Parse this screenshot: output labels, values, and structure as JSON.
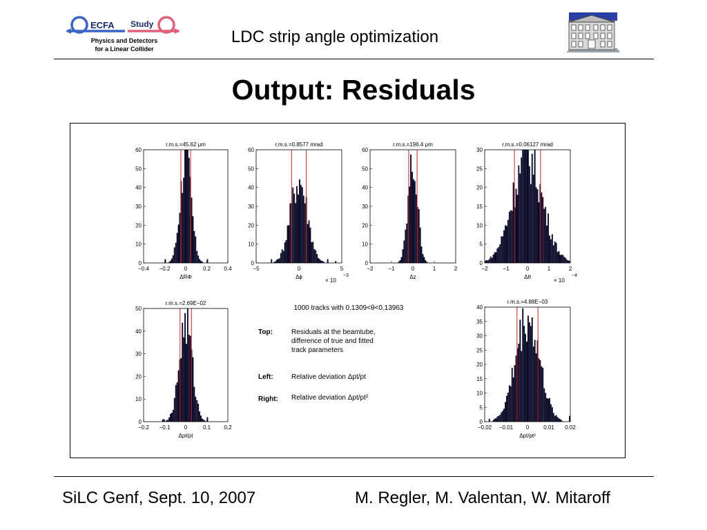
{
  "header": {
    "logo_main": "ECFA",
    "logo_study": "Study",
    "logo_line1": "Physics and Detectors",
    "logo_line2": "for a Linear Collider",
    "title": "LDC strip angle optimization"
  },
  "slide_title": "Output: Residuals",
  "footer": {
    "left": "SiLC Genf, Sept. 10, 2007",
    "right": "M. Regler, M. Valentan, W. Mitaroff"
  },
  "figure": {
    "tracks_caption": "1000 tracks with 0.1309<θ<0.13963",
    "notes": [
      {
        "label": "Top:",
        "lines": [
          "Residuals at the beamtube,",
          "difference of true and fitted",
          "track parameters"
        ]
      },
      {
        "label": "Left:",
        "lines": [
          "Relative deviation Δpt/pt"
        ]
      },
      {
        "label": "Right:",
        "lines": [
          "Relative deviation Δpt/pt²"
        ]
      }
    ]
  },
  "chart_data": [
    {
      "type": "bar",
      "title": "r.m.s.=45.62 μm",
      "xlabel": "ΔRΦ",
      "xlim": [
        -0.4,
        0.4
      ],
      "ylim": [
        0,
        60
      ],
      "xticks": [
        "−0.4",
        "−0.2",
        "0",
        "0.2",
        "0.4"
      ],
      "yticks": [
        "0",
        "10",
        "20",
        "30",
        "40",
        "50",
        "60"
      ],
      "sigma": 0.0456,
      "peak": 56,
      "rms_lines": [
        -0.046,
        0.046
      ],
      "multiplier": ""
    },
    {
      "type": "bar",
      "title": "r.m.s.=0.8577 mrad",
      "xlabel": "Δϕ",
      "xlim": [
        -5,
        5
      ],
      "ylim": [
        0,
        60
      ],
      "xticks": [
        "−5",
        "0",
        "5"
      ],
      "yticks": [
        "0",
        "10",
        "20",
        "30",
        "40",
        "50",
        "60"
      ],
      "sigma": 0.86,
      "peak": 44,
      "rms_lines": [
        -0.86,
        0.86
      ],
      "multiplier": "× 10",
      "exponent": "−3"
    },
    {
      "type": "bar",
      "title": "r.m.s.=196.4 μm",
      "xlabel": "Δz",
      "xlim": [
        -2,
        2
      ],
      "ylim": [
        0,
        60
      ],
      "xticks": [
        "−2",
        "−1",
        "0",
        "1",
        "2"
      ],
      "yticks": [
        "0",
        "10",
        "20",
        "30",
        "40",
        "50",
        "60"
      ],
      "sigma": 0.196,
      "peak": 52,
      "rms_lines": [
        -0.196,
        0.196
      ],
      "multiplier": ""
    },
    {
      "type": "bar",
      "title": "r.m.s.=0.06127 mrad",
      "xlabel": "Δθ",
      "xlim": [
        -2,
        2
      ],
      "ylim": [
        0,
        30
      ],
      "xticks": [
        "−2",
        "−1",
        "0",
        "1",
        "2"
      ],
      "yticks": [
        "0",
        "5",
        "10",
        "15",
        "20",
        "25",
        "30"
      ],
      "sigma": 0.61,
      "peak": 28,
      "rms_lines": [
        -0.61,
        0.61
      ],
      "multiplier": "× 10",
      "exponent": "−4"
    },
    {
      "type": "bar",
      "title": "r.m.s.=2.69E−02",
      "xlabel": "Δpt/pt",
      "xlim": [
        -0.2,
        0.2
      ],
      "ylim": [
        0,
        50
      ],
      "xticks": [
        "−0.2",
        "−0.1",
        "0",
        "0.1",
        "0.2"
      ],
      "yticks": [
        "0",
        "10",
        "20",
        "30",
        "40",
        "50"
      ],
      "sigma": 0.0269,
      "peak": 43,
      "rms_lines": [
        -0.027,
        0.027
      ],
      "multiplier": ""
    },
    {
      "type": "bar",
      "title": "r.m.s.=4.88E−03",
      "xlabel": "Δpt/pt²",
      "xlim": [
        -0.02,
        0.02
      ],
      "ylim": [
        0,
        40
      ],
      "xticks": [
        "−0.02",
        "−0.01",
        "0",
        "0.01",
        "0.02"
      ],
      "yticks": [
        "0",
        "5",
        "10",
        "15",
        "20",
        "25",
        "30",
        "35",
        "40"
      ],
      "sigma": 0.00488,
      "peak": 36,
      "rms_lines": [
        -0.0049,
        0.0049
      ],
      "multiplier": ""
    }
  ]
}
